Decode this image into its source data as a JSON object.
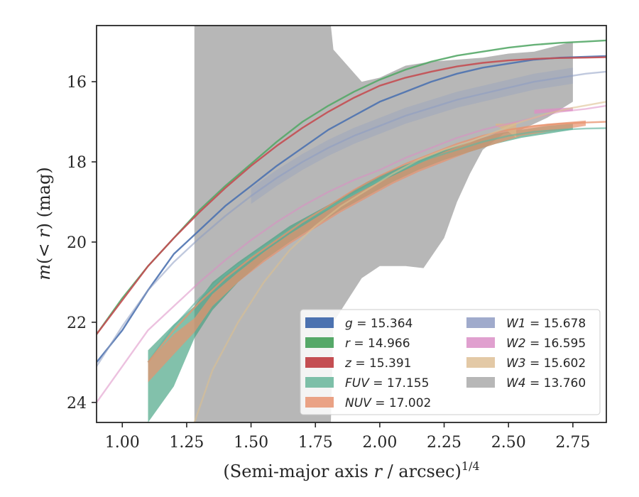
{
  "chart_data": {
    "type": "line",
    "xlabel": "(Semi-major axis r / arcsec)^1/4",
    "ylabel": "m(< r) (mag)",
    "xlim": [
      0.9,
      2.88
    ],
    "ylim": [
      24.5,
      14.6
    ],
    "y_inverted": true,
    "x_ticks": [
      1.0,
      1.25,
      1.5,
      1.75,
      2.0,
      2.25,
      2.5,
      2.75
    ],
    "x_tick_labels": [
      "1.00",
      "1.25",
      "1.50",
      "1.75",
      "2.00",
      "2.25",
      "2.50",
      "2.75"
    ],
    "y_ticks": [
      16,
      18,
      20,
      22,
      24
    ],
    "y_tick_labels": [
      "16",
      "18",
      "20",
      "22",
      "24"
    ],
    "grid": false,
    "legend_placement": "lower-right",
    "series": [
      {
        "name": "g = 15.364",
        "label_var": "g",
        "label_val": "= 15.364",
        "color": "#4c72b0",
        "alpha": 0.9,
        "x": [
          0.9,
          1.0,
          1.1,
          1.2,
          1.3,
          1.4,
          1.5,
          1.6,
          1.7,
          1.8,
          1.9,
          2.0,
          2.1,
          2.2,
          2.3,
          2.4,
          2.5,
          2.6,
          2.7,
          2.8,
          2.88
        ],
        "y": [
          23.0,
          22.2,
          21.2,
          20.3,
          19.7,
          19.1,
          18.6,
          18.1,
          17.65,
          17.2,
          16.85,
          16.5,
          16.25,
          16.0,
          15.8,
          15.65,
          15.55,
          15.45,
          15.4,
          15.38,
          15.36
        ]
      },
      {
        "name": "r = 14.966",
        "label_var": "r",
        "label_val": "= 14.966",
        "color": "#55a868",
        "alpha": 0.9,
        "x": [
          0.9,
          1.0,
          1.1,
          1.2,
          1.3,
          1.4,
          1.5,
          1.6,
          1.7,
          1.8,
          1.9,
          2.0,
          2.1,
          2.2,
          2.3,
          2.4,
          2.5,
          2.6,
          2.7,
          2.8,
          2.88
        ],
        "y": [
          22.3,
          21.4,
          20.6,
          19.9,
          19.2,
          18.6,
          18.05,
          17.5,
          17.0,
          16.6,
          16.25,
          15.95,
          15.7,
          15.5,
          15.35,
          15.25,
          15.15,
          15.08,
          15.03,
          15.0,
          14.97
        ]
      },
      {
        "name": "z = 15.391",
        "label_var": "z",
        "label_val": "= 15.391",
        "color": "#c44e52",
        "alpha": 0.9,
        "x": [
          0.9,
          1.0,
          1.1,
          1.2,
          1.3,
          1.4,
          1.5,
          1.6,
          1.7,
          1.8,
          1.9,
          2.0,
          2.1,
          2.2,
          2.3,
          2.4,
          2.5,
          2.6,
          2.7,
          2.8,
          2.88
        ],
        "y": [
          22.3,
          21.45,
          20.6,
          19.9,
          19.25,
          18.65,
          18.1,
          17.6,
          17.15,
          16.75,
          16.4,
          16.1,
          15.9,
          15.75,
          15.62,
          15.53,
          15.47,
          15.43,
          15.41,
          15.4,
          15.39
        ]
      },
      {
        "name": "FUV = 17.155",
        "label_var": "FUV",
        "label_val": "= 17.155",
        "color": "#64b5a0",
        "alpha": 0.65,
        "x": [
          1.1,
          1.2,
          1.3,
          1.4,
          1.5,
          1.6,
          1.7,
          1.8,
          1.9,
          2.0,
          2.1,
          2.2,
          2.3,
          2.4,
          2.5,
          2.6,
          2.7,
          2.8,
          2.88
        ],
        "y": [
          23.0,
          22.1,
          21.4,
          20.8,
          20.35,
          19.9,
          19.5,
          19.15,
          18.8,
          18.45,
          18.15,
          17.9,
          17.7,
          17.5,
          17.35,
          17.25,
          17.2,
          17.17,
          17.16
        ]
      },
      {
        "name": "NUV = 17.002",
        "label_var": "NUV",
        "label_val": "= 17.002",
        "color": "#e8916c",
        "alpha": 0.75,
        "x": [
          1.1,
          1.2,
          1.3,
          1.4,
          1.5,
          1.6,
          1.7,
          1.8,
          1.9,
          2.0,
          2.1,
          2.2,
          2.3,
          2.4,
          2.5,
          2.6,
          2.7,
          2.8,
          2.88
        ],
        "y": [
          23.0,
          22.2,
          21.5,
          20.9,
          20.4,
          19.95,
          19.5,
          19.1,
          18.7,
          18.35,
          18.05,
          17.8,
          17.55,
          17.35,
          17.2,
          17.1,
          17.05,
          17.02,
          17.0
        ]
      },
      {
        "name": "W1 = 15.678",
        "label_var": "W1",
        "label_val": "= 15.678",
        "color": "#8c9cc2",
        "alpha": 0.55,
        "x": [
          0.9,
          1.0,
          1.1,
          1.2,
          1.3,
          1.4,
          1.5,
          1.6,
          1.7,
          1.8,
          1.9,
          2.0,
          2.1,
          2.2,
          2.3,
          2.4,
          2.5,
          2.6,
          2.7,
          2.8,
          2.88
        ],
        "y": [
          23.1,
          22.1,
          21.2,
          20.5,
          19.9,
          19.35,
          18.85,
          18.4,
          18.0,
          17.65,
          17.35,
          17.1,
          16.85,
          16.65,
          16.45,
          16.3,
          16.15,
          16.0,
          15.9,
          15.8,
          15.75
        ]
      },
      {
        "name": "W2 = 16.595",
        "label_var": "W2",
        "label_val": "= 16.595",
        "color": "#dd8ec4",
        "alpha": 0.55,
        "x": [
          0.9,
          1.0,
          1.1,
          1.2,
          1.3,
          1.4,
          1.5,
          1.6,
          1.7,
          1.8,
          1.9,
          2.0,
          2.1,
          2.2,
          2.3,
          2.4,
          2.5,
          2.6,
          2.7,
          2.8,
          2.88
        ],
        "y": [
          24.0,
          23.1,
          22.2,
          21.6,
          21.0,
          20.45,
          19.95,
          19.5,
          19.1,
          18.75,
          18.45,
          18.2,
          17.9,
          17.65,
          17.4,
          17.2,
          17.05,
          16.9,
          16.75,
          16.68,
          16.6
        ]
      },
      {
        "name": "W3 = 15.602",
        "label_var": "W3",
        "label_val": "= 15.602",
        "color": "#dcbf8f",
        "alpha": 0.6,
        "x": [
          1.28,
          1.35,
          1.45,
          1.55,
          1.65,
          1.75,
          1.85,
          1.95,
          2.05,
          2.15,
          2.25,
          2.35,
          2.45,
          2.55,
          2.65,
          2.75,
          2.88
        ],
        "y": [
          24.5,
          23.2,
          22.0,
          21.0,
          20.2,
          19.6,
          19.1,
          18.7,
          18.3,
          17.95,
          17.7,
          17.5,
          17.25,
          17.0,
          16.8,
          16.65,
          16.5
        ]
      }
    ],
    "w4_band": {
      "name": "W4 = 13.760",
      "label_var": "W4",
      "label_val": "= 13.760",
      "color": "#aaaaaa",
      "alpha": 0.85,
      "upper": {
        "x": [
          1.28,
          1.81,
          1.82,
          1.93,
          2.0,
          2.1,
          2.2,
          2.3,
          2.4,
          2.5,
          2.6,
          2.75
        ],
        "y": [
          14.6,
          14.6,
          15.2,
          16.0,
          15.9,
          15.6,
          15.5,
          15.45,
          15.4,
          15.3,
          15.25,
          15.0
        ]
      },
      "lower": {
        "x": [
          1.28,
          1.81,
          1.82,
          1.93,
          2.0,
          2.02,
          2.1,
          2.17,
          2.25,
          2.3,
          2.35,
          2.4,
          2.48,
          2.55,
          2.65,
          2.75
        ],
        "y": [
          24.5,
          24.5,
          22.0,
          20.9,
          20.6,
          20.6,
          20.6,
          20.65,
          19.9,
          19.0,
          18.3,
          17.7,
          17.3,
          17.2,
          16.9,
          16.5
        ]
      }
    },
    "fill_bands": [
      {
        "series": "FUV",
        "color": "#3fa07e",
        "alpha": 0.65,
        "x": [
          1.1,
          1.2,
          1.28,
          1.35,
          1.45,
          1.55,
          1.65,
          1.75,
          1.85,
          1.95,
          2.05,
          2.15,
          2.25,
          2.35,
          2.45,
          2.55,
          2.65,
          2.75
        ],
        "y_low": [
          24.5,
          23.6,
          22.4,
          21.7,
          21.0,
          20.45,
          20.0,
          19.6,
          19.2,
          18.85,
          18.5,
          18.2,
          17.95,
          17.75,
          17.55,
          17.4,
          17.3,
          17.2
        ],
        "y_high": [
          22.7,
          22.05,
          21.6,
          21.0,
          20.5,
          20.05,
          19.6,
          19.25,
          18.9,
          18.5,
          18.2,
          17.95,
          17.7,
          17.5,
          17.3,
          17.2,
          17.1,
          17.05
        ]
      },
      {
        "series": "NUV",
        "color": "#e8916c",
        "alpha": 0.7,
        "x": [
          1.1,
          1.2,
          1.28,
          1.35,
          1.45,
          1.55,
          1.65,
          1.75,
          1.85,
          1.95,
          2.05,
          2.15,
          2.25,
          2.35,
          2.45,
          2.55,
          2.65,
          2.8
        ],
        "y_low": [
          23.5,
          22.8,
          22.25,
          21.6,
          21.0,
          20.5,
          20.05,
          19.65,
          19.25,
          18.9,
          18.55,
          18.25,
          18.0,
          17.75,
          17.55,
          17.35,
          17.25,
          17.1
        ],
        "y_high": [
          23.0,
          22.3,
          21.9,
          21.3,
          20.75,
          20.25,
          19.8,
          19.4,
          19.0,
          18.65,
          18.35,
          18.05,
          17.75,
          17.5,
          17.3,
          17.15,
          17.05,
          16.97
        ]
      },
      {
        "series": "W1",
        "color": "#8c9cc2",
        "alpha": 0.3,
        "x": [
          1.5,
          1.6,
          1.7,
          1.8,
          1.9,
          2.0,
          2.1,
          2.2,
          2.3,
          2.4,
          2.5,
          2.6,
          2.75
        ],
        "y_low": [
          19.05,
          18.6,
          18.2,
          17.85,
          17.55,
          17.3,
          17.05,
          16.85,
          16.65,
          16.5,
          16.35,
          16.2,
          16.05
        ],
        "y_high": [
          18.65,
          18.2,
          17.8,
          17.45,
          17.15,
          16.9,
          16.65,
          16.45,
          16.25,
          16.1,
          15.95,
          15.8,
          15.65
        ]
      },
      {
        "series": "W2",
        "color": "#dd8ec4",
        "alpha": 0.75,
        "x": [
          2.6,
          2.65,
          2.7,
          2.75
        ],
        "y_low": [
          16.8,
          16.77,
          16.75,
          16.73
        ],
        "y_high": [
          16.7,
          16.68,
          16.66,
          16.64
        ]
      },
      {
        "series": "W3",
        "color": "#d9b487",
        "alpha": 0.8,
        "x": [
          2.45,
          2.5,
          2.53,
          2.53
        ],
        "y_low": [
          17.1,
          17.25,
          17.4,
          17.05
        ],
        "y_high": [
          17.05,
          17.05,
          17.0,
          16.95
        ]
      }
    ],
    "legend": {
      "col1": [
        "g",
        "r",
        "z",
        "FUV",
        "NUV"
      ],
      "col2": [
        "W1",
        "W2",
        "W3",
        "W4"
      ]
    }
  }
}
